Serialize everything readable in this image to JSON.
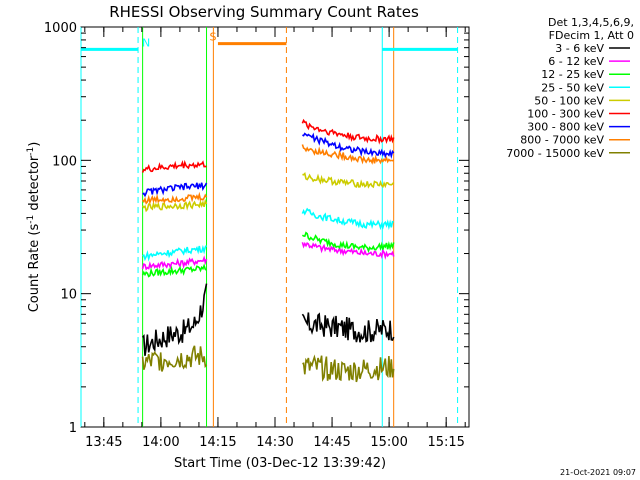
{
  "chart_data": {
    "type": "line",
    "title": "RHESSI Observing Summary Count Rates",
    "xlabel": "Start Time (03-Dec-12 13:39:42)",
    "ylabel_main": "Count Rate (s",
    "ylabel_sup1": "-1",
    "ylabel_mid": " detector",
    "ylabel_sup2": "-1",
    "ylabel_end": ")",
    "yscale": "log",
    "ylim": [
      1,
      1000
    ],
    "xlim_minutes": [
      13.65,
      15.35
    ],
    "x_ticks": [
      "13:45",
      "14:00",
      "14:15",
      "14:30",
      "14:45",
      "15:00",
      "15:15"
    ],
    "y_ticks": [
      "1",
      "10",
      "100",
      "1000"
    ],
    "legend_header": [
      "Det 1,3,4,5,6,9,",
      "FDecim 1, Att 0"
    ],
    "series": [
      {
        "name": "3 - 6 keV",
        "color": "#000000",
        "segments": [
          {
            "x": [
              13.92,
              13.98,
              14.05,
              14.1,
              14.15,
              14.18,
              14.2
            ],
            "y": [
              4,
              4.5,
              5,
              5.2,
              6,
              8,
              10
            ]
          },
          {
            "x": [
              14.62,
              14.7,
              14.8,
              14.9,
              14.97,
              15.02
            ],
            "y": [
              6,
              5.8,
              5.5,
              5.2,
              5.4,
              5.5
            ]
          }
        ]
      },
      {
        "name": "6 - 12 keV",
        "color": "#ff00ff",
        "segments": [
          {
            "x": [
              13.92,
              14.0,
              14.1,
              14.2
            ],
            "y": [
              16,
              16.5,
              17,
              18
            ]
          },
          {
            "x": [
              14.62,
              14.7,
              14.8,
              14.9,
              15.02
            ],
            "y": [
              24,
              22,
              21,
              20,
              20
            ]
          }
        ]
      },
      {
        "name": "12 - 25 keV",
        "color": "#00ff00",
        "segments": [
          {
            "x": [
              13.92,
              14.0,
              14.1,
              14.2
            ],
            "y": [
              14,
              14.5,
              15,
              15.5
            ]
          },
          {
            "x": [
              14.62,
              14.7,
              14.8,
              14.9,
              15.02
            ],
            "y": [
              28,
              25,
              23,
              22,
              23
            ]
          }
        ]
      },
      {
        "name": "25 - 50 keV",
        "color": "#00ffff",
        "segments": [
          {
            "x": [
              13.92,
              14.0,
              14.1,
              14.2
            ],
            "y": [
              19,
              20,
              21,
              22
            ]
          },
          {
            "x": [
              14.62,
              14.7,
              14.8,
              14.9,
              15.02
            ],
            "y": [
              42,
              38,
              35,
              33,
              33
            ]
          }
        ]
      },
      {
        "name": "50 - 100 keV",
        "color": "#cccc00",
        "segments": [
          {
            "x": [
              13.92,
              14.0,
              14.1,
              14.2
            ],
            "y": [
              44,
              45,
              46,
              47
            ]
          },
          {
            "x": [
              14.62,
              14.7,
              14.8,
              14.9,
              15.02
            ],
            "y": [
              76,
              72,
              68,
              66,
              66
            ]
          }
        ]
      },
      {
        "name": "100 - 300 keV",
        "color": "#ff0000",
        "segments": [
          {
            "x": [
              13.92,
              14.0,
              14.1,
              14.2
            ],
            "y": [
              85,
              88,
              92,
              93
            ]
          },
          {
            "x": [
              14.62,
              14.7,
              14.8,
              14.9,
              15.02
            ],
            "y": [
              190,
              170,
              155,
              145,
              145
            ]
          }
        ]
      },
      {
        "name": "300 - 800 keV",
        "color": "#0000ff",
        "segments": [
          {
            "x": [
              13.92,
              14.0,
              14.1,
              14.2
            ],
            "y": [
              57,
              60,
              63,
              65
            ]
          },
          {
            "x": [
              14.62,
              14.7,
              14.8,
              14.9,
              15.02
            ],
            "y": [
              160,
              140,
              125,
              115,
              112
            ]
          }
        ]
      },
      {
        "name": "800 - 7000 keV",
        "color": "#ff7f00",
        "segments": [
          {
            "x": [
              13.92,
              14.0,
              14.1,
              14.2
            ],
            "y": [
              50,
              51,
              52,
              53
            ]
          },
          {
            "x": [
              14.62,
              14.7,
              14.8,
              14.9,
              15.02
            ],
            "y": [
              125,
              115,
              108,
              100,
              100
            ]
          }
        ]
      },
      {
        "name": "7000 - 15000 keV",
        "color": "#808000",
        "segments": [
          {
            "x": [
              13.92,
              14.0,
              14.1,
              14.2
            ],
            "y": [
              3,
              3.2,
              3.3,
              3.4
            ]
          },
          {
            "x": [
              14.62,
              14.7,
              14.8,
              14.9,
              15.02
            ],
            "y": [
              2.8,
              2.8,
              2.6,
              2.7,
              2.8
            ]
          }
        ]
      }
    ],
    "flag_bars": [
      {
        "label": "N",
        "color": "#00ffff",
        "y": 680,
        "segments": [
          [
            13.65,
            13.9
          ],
          [
            14.97,
            15.3
          ]
        ]
      },
      {
        "label": "S",
        "color": "#ff7f00",
        "y": 750,
        "segments": [
          [
            14.25,
            14.55
          ]
        ]
      }
    ],
    "vlines": [
      {
        "x": 13.65,
        "color": "#00ffff",
        "style": "solid"
      },
      {
        "x": 13.9,
        "color": "#00ffff",
        "style": "dashed"
      },
      {
        "x": 14.23,
        "color": "#ff7f00",
        "style": "solid"
      },
      {
        "x": 14.55,
        "color": "#ff7f00",
        "style": "dashed"
      },
      {
        "x": 14.97,
        "color": "#00ffff",
        "style": "solid"
      },
      {
        "x": 15.3,
        "color": "#00ffff",
        "style": "dashed"
      },
      {
        "x": 13.92,
        "color": "#00ff00",
        "style": "solid"
      },
      {
        "x": 14.2,
        "color": "#00ff00",
        "style": "solid"
      },
      {
        "x": 15.02,
        "color": "#ff7f00",
        "style": "solid"
      }
    ],
    "footer": "21-Oct-2021 09:07"
  }
}
